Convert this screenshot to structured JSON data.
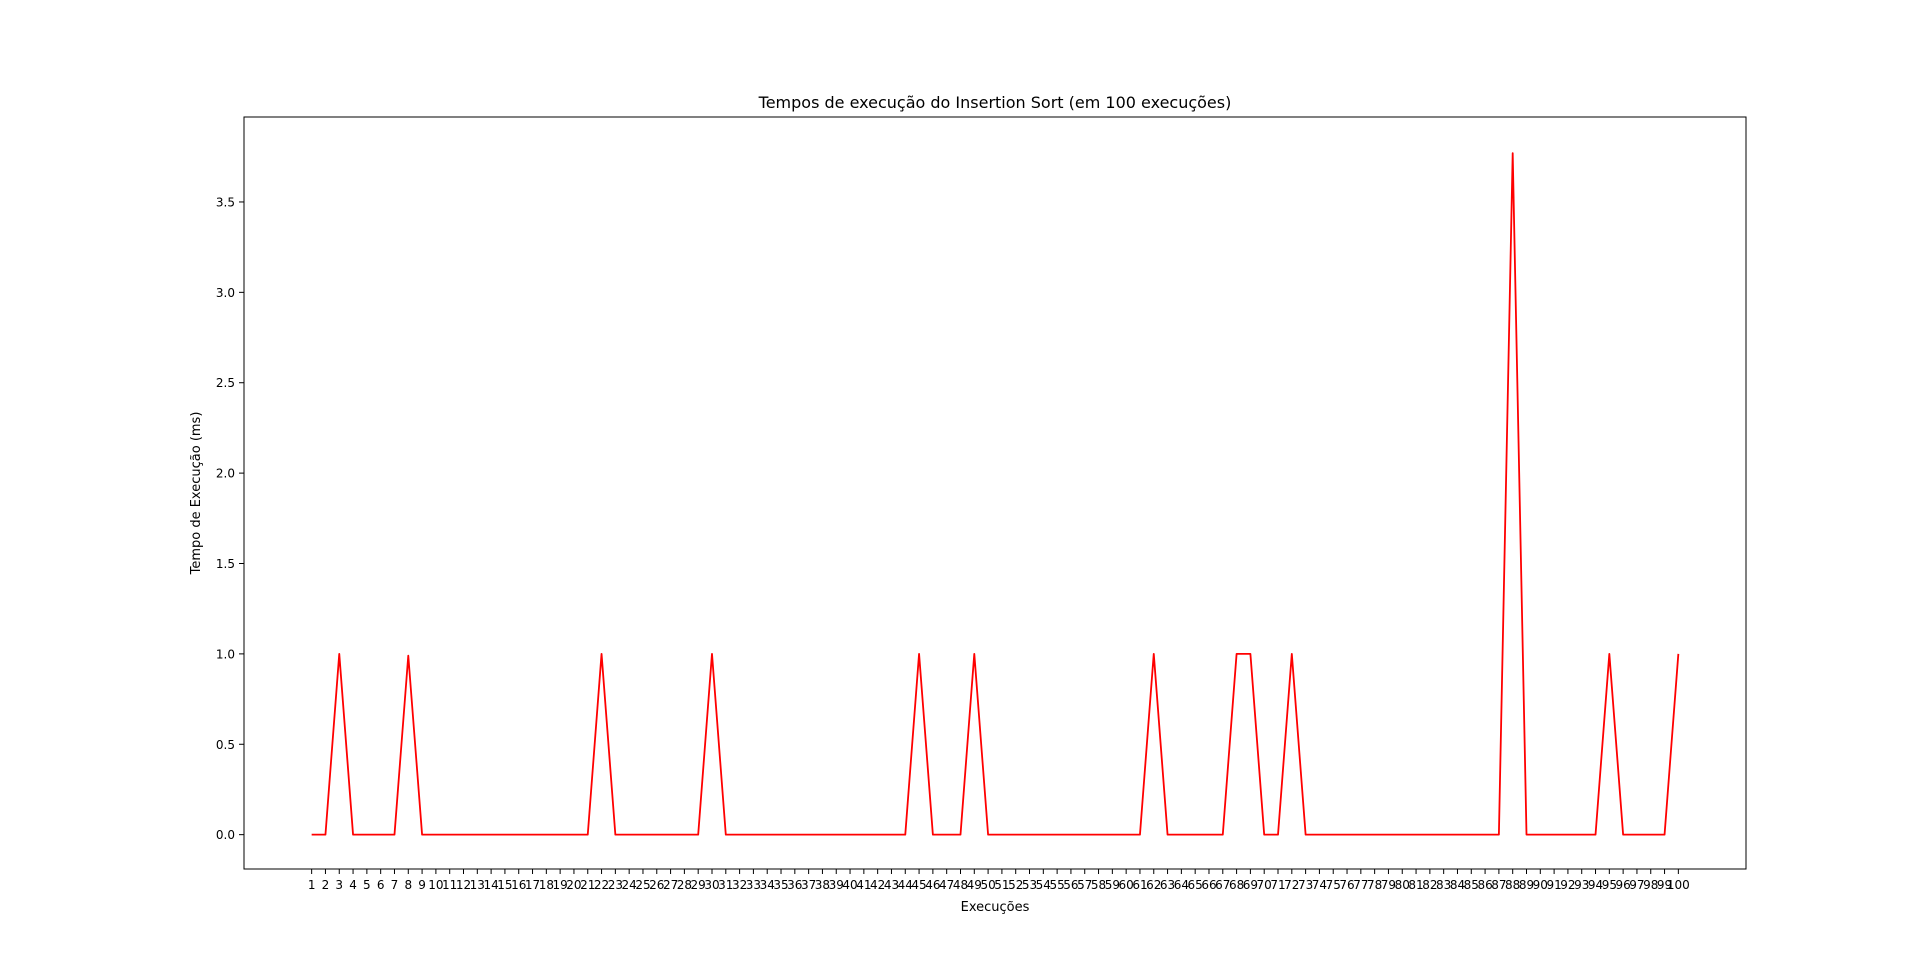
{
  "chart_data": {
    "type": "line",
    "title": "Tempos de execução do Insertion Sort (em 100 execuções)",
    "xlabel": "Execuções",
    "ylabel": "Tempo de Execução (ms)",
    "xlim": [
      -3.9,
      104.9
    ],
    "ylim": [
      -0.19,
      3.97
    ],
    "yticks": [
      0.0,
      0.5,
      1.0,
      1.5,
      2.0,
      2.5,
      3.0,
      3.5
    ],
    "ytick_labels": [
      "0.0",
      "0.5",
      "1.0",
      "1.5",
      "2.0",
      "2.5",
      "3.0",
      "3.5"
    ],
    "x": [
      1,
      2,
      3,
      4,
      5,
      6,
      7,
      8,
      9,
      10,
      11,
      12,
      13,
      14,
      15,
      16,
      17,
      18,
      19,
      20,
      21,
      22,
      23,
      24,
      25,
      26,
      27,
      28,
      29,
      30,
      31,
      32,
      33,
      34,
      35,
      36,
      37,
      38,
      39,
      40,
      41,
      42,
      43,
      44,
      45,
      46,
      47,
      48,
      49,
      50,
      51,
      52,
      53,
      54,
      55,
      56,
      57,
      58,
      59,
      60,
      61,
      62,
      63,
      64,
      65,
      66,
      67,
      68,
      69,
      70,
      71,
      72,
      73,
      74,
      75,
      76,
      77,
      78,
      79,
      80,
      81,
      82,
      83,
      84,
      85,
      86,
      87,
      88,
      89,
      90,
      91,
      92,
      93,
      94,
      95,
      96,
      97,
      98,
      99,
      100
    ],
    "xtick_labels": [
      "1",
      "2",
      "3",
      "4",
      "5",
      "6",
      "7",
      "8",
      "9",
      "10",
      "11",
      "12",
      "13",
      "14",
      "15",
      "16",
      "17",
      "18",
      "19",
      "20",
      "21",
      "22",
      "23",
      "24",
      "25",
      "26",
      "27",
      "28",
      "29",
      "30",
      "31",
      "32",
      "33",
      "34",
      "35",
      "36",
      "37",
      "38",
      "39",
      "40",
      "41",
      "42",
      "43",
      "44",
      "45",
      "46",
      "47",
      "48",
      "49",
      "50",
      "51",
      "52",
      "53",
      "54",
      "55",
      "56",
      "57",
      "58",
      "59",
      "60",
      "61",
      "62",
      "63",
      "64",
      "65",
      "66",
      "67",
      "68",
      "69",
      "70",
      "71",
      "72",
      "73",
      "74",
      "75",
      "76",
      "77",
      "78",
      "79",
      "80",
      "81",
      "82",
      "83",
      "84",
      "85",
      "86",
      "87",
      "88",
      "89",
      "90",
      "91",
      "92",
      "93",
      "94",
      "95",
      "96",
      "97",
      "98",
      "99",
      "100"
    ],
    "series": [
      {
        "color": "#ff0000",
        "values": [
          0,
          0,
          1.0,
          0,
          0,
          0,
          0,
          0.99,
          0,
          0,
          0,
          0,
          0,
          0,
          0,
          0,
          0,
          0,
          0,
          0,
          0,
          1.0,
          0,
          0,
          0,
          0,
          0,
          0,
          0,
          1.0,
          0,
          0,
          0,
          0,
          0,
          0,
          0,
          0,
          0,
          0,
          0,
          0,
          0,
          0,
          1.0,
          0,
          0,
          0,
          1.0,
          0,
          0,
          0,
          0,
          0,
          0,
          0,
          0,
          0,
          0,
          0,
          0,
          1.0,
          0,
          0,
          0,
          0,
          0,
          1.0,
          1.0,
          0,
          0,
          1.0,
          0,
          0,
          0,
          0,
          0,
          0,
          0,
          0,
          0,
          0,
          0,
          0,
          0,
          0,
          0,
          3.77,
          0,
          0,
          0,
          0,
          0,
          0,
          1.0,
          0,
          0,
          0,
          0,
          1.0
        ]
      }
    ],
    "grid": false,
    "legend": false
  }
}
